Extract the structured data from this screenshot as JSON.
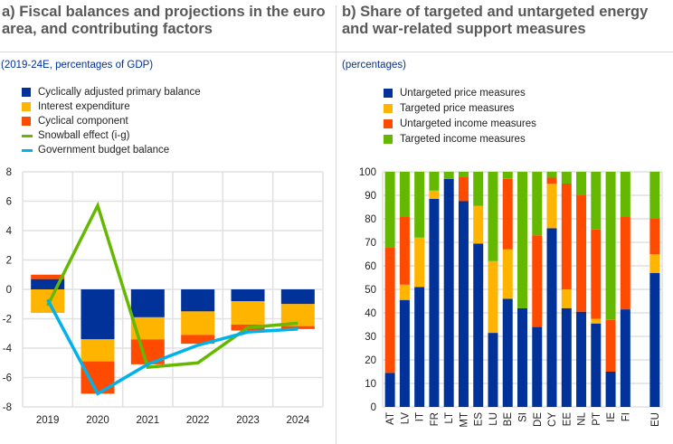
{
  "colors": {
    "blue": "#003299",
    "yellow": "#FFB400",
    "orange": "#FF4B00",
    "green": "#65B800",
    "cyan": "#00B1EA"
  },
  "chart_data": [
    {
      "type": "bar",
      "title": "a) Fiscal balances and projections in the euro area, and contributing factors",
      "subtitle": "(2019-24E, percentages of GDP)",
      "categories": [
        "2019",
        "2020",
        "2021",
        "2022",
        "2023",
        "2024"
      ],
      "ylim": [
        -8,
        8
      ],
      "yticks": [
        "8",
        "6",
        "4",
        "2",
        "0",
        "-2",
        "-4",
        "-6",
        "-8"
      ],
      "grid": true,
      "series": [
        {
          "name": "Cyclically adjusted primary balance",
          "kind": "bar",
          "color": "#003299",
          "values": [
            0.7,
            -3.4,
            -1.9,
            -1.5,
            -0.8,
            -1.0
          ]
        },
        {
          "name": "Interest expenditure",
          "kind": "bar",
          "color": "#FFB400",
          "values": [
            -1.6,
            -1.5,
            -1.5,
            -1.6,
            -1.6,
            -1.5
          ]
        },
        {
          "name": "Cyclical component",
          "kind": "bar",
          "color": "#FF4B00",
          "values": [
            0.3,
            -2.2,
            -1.7,
            -0.6,
            -0.4,
            -0.2
          ]
        },
        {
          "name": "Snowball effect (i-g)",
          "kind": "line",
          "color": "#65B800",
          "values": [
            -1.1,
            5.7,
            -5.3,
            -5.0,
            -2.6,
            -2.3
          ]
        },
        {
          "name": "Government budget balance",
          "kind": "line",
          "color": "#00B1EA",
          "values": [
            -0.7,
            -7.1,
            -5.1,
            -3.8,
            -2.9,
            -2.7
          ]
        }
      ]
    },
    {
      "type": "bar",
      "stacked": true,
      "title": "b) Share of targeted and untargeted energy and war-related support measures",
      "subtitle": "(percentages)",
      "categories": [
        "AT",
        "LV",
        "IT",
        "FR",
        "LT",
        "MT",
        "ES",
        "LU",
        "BE",
        "SI",
        "DE",
        "CY",
        "EE",
        "NL",
        "PT",
        "IE",
        "FI",
        "",
        "EU"
      ],
      "ylim": [
        0,
        100
      ],
      "yticks": [
        "100",
        "90",
        "80",
        "70",
        "60",
        "50",
        "40",
        "30",
        "20",
        "10",
        "0"
      ],
      "grid": true,
      "series": [
        {
          "name": "Untargeted price measures",
          "color": "#003299",
          "values": [
            14.5,
            45.5,
            51,
            88.5,
            97,
            87.5,
            69.5,
            31.5,
            46,
            42,
            34,
            76,
            42,
            40.5,
            35.5,
            15,
            41.5,
            null,
            57
          ]
        },
        {
          "name": "Targeted price measures",
          "color": "#FFB400",
          "values": [
            0,
            6.5,
            21,
            3.5,
            0,
            0,
            16,
            30.5,
            21,
            0,
            0,
            19,
            8,
            0,
            2,
            0,
            0,
            null,
            8
          ]
        },
        {
          "name": "Untargeted  income measures",
          "color": "#FF4B00",
          "values": [
            53.5,
            29,
            0,
            0,
            0,
            10.5,
            0,
            0,
            30,
            0,
            39,
            2.5,
            45,
            49.5,
            38,
            22,
            39.5,
            null,
            15
          ]
        },
        {
          "name": "Targeted income measures",
          "color": "#65B800",
          "values": [
            32,
            19,
            28,
            8,
            3,
            2,
            14.5,
            38,
            3,
            58,
            27,
            2.5,
            5,
            10,
            24.5,
            63,
            19,
            null,
            20
          ]
        }
      ]
    }
  ]
}
